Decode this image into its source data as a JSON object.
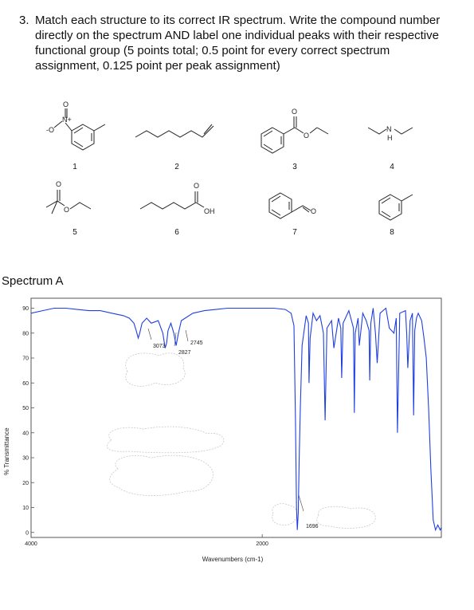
{
  "question": {
    "number": "3.",
    "text": "Match each structure to its correct IR spectrum. Write the compound number directly on the spectrum AND label one individual peaks with their respective functional group (5 points total; 0.5 point for every correct spectrum assignment, 0.125 point per peak assignment)"
  },
  "structures": [
    {
      "label": "1",
      "atoms": [
        "O",
        "N+",
        "-O"
      ]
    },
    {
      "label": "2",
      "atoms": []
    },
    {
      "label": "3",
      "atoms": [
        "O",
        "O"
      ]
    },
    {
      "label": "4",
      "atoms": [
        "N",
        "H"
      ]
    },
    {
      "label": "5",
      "atoms": [
        "O",
        "O"
      ]
    },
    {
      "label": "6",
      "atoms": [
        "O",
        "OH"
      ]
    },
    {
      "label": "7",
      "atoms": [
        "O"
      ]
    },
    {
      "label": "8",
      "atoms": []
    }
  ],
  "spectrum": {
    "title": "Spectrum A",
    "line_color": "#1f3fe0",
    "chart_data": {
      "type": "line",
      "xlabel": "Wavenumbers (cm-1)",
      "ylabel": "% Transmittance",
      "x_ticks": [
        "4000",
        "2000"
      ],
      "y_ticks": [
        "90",
        "80",
        "70",
        "60",
        "50",
        "40",
        "30",
        "20",
        "10",
        "0"
      ],
      "xlim": [
        4000,
        450
      ],
      "ylim": [
        -2,
        94
      ],
      "annotations": [
        "3073",
        "2745",
        "2827",
        "1696"
      ],
      "series": [
        {
          "x": [
            4000,
            3900,
            3800,
            3700,
            3600,
            3500,
            3400,
            3300,
            3200,
            3150,
            3110,
            3090,
            3073,
            3060,
            3040,
            3000,
            2960,
            2900,
            2860,
            2840,
            2827,
            2815,
            2790,
            2765,
            2745,
            2725,
            2700,
            2600,
            2500,
            2400,
            2300,
            2200,
            2100,
            2000,
            1900,
            1800,
            1750,
            1725,
            1712,
            1703,
            1696,
            1688,
            1680,
            1670,
            1655,
            1620,
            1600,
            1595,
            1585,
            1560,
            1530,
            1500,
            1470,
            1456,
            1440,
            1400,
            1380,
            1340,
            1320,
            1312,
            1300,
            1250,
            1210,
            1203,
            1195,
            1170,
            1160,
            1130,
            1100,
            1075,
            1070,
            1060,
            1040,
            1020,
            1005,
            980,
            930,
            900,
            860,
            840,
            830,
            810,
            760,
            750,
            740,
            720,
            700,
            690,
            680,
            665,
            650,
            620,
            600,
            580,
            560,
            540,
            520,
            500,
            480,
            460,
            450
          ],
          "y": [
            88,
            89,
            90,
            90,
            89.5,
            89,
            89,
            88,
            87,
            86,
            84,
            81,
            78,
            80,
            84,
            86,
            84,
            85,
            80,
            74,
            76,
            81,
            84,
            80,
            75,
            80,
            85,
            88,
            89,
            89.5,
            90,
            90,
            90,
            90,
            90,
            89.5,
            88,
            83,
            45,
            10,
            1,
            8,
            30,
            50,
            75,
            87,
            84,
            60,
            78,
            88,
            85,
            87,
            80,
            45,
            82,
            85,
            74,
            86,
            82,
            62,
            84,
            89,
            82,
            48,
            80,
            86,
            75,
            88,
            85,
            81,
            61,
            84,
            90,
            80,
            68,
            88,
            90,
            82,
            80,
            86,
            40,
            88,
            89,
            80,
            66,
            85,
            88,
            47,
            81,
            86,
            88,
            85,
            78,
            70,
            50,
            25,
            5,
            1,
            3,
            1,
            2
          ]
        }
      ]
    }
  }
}
